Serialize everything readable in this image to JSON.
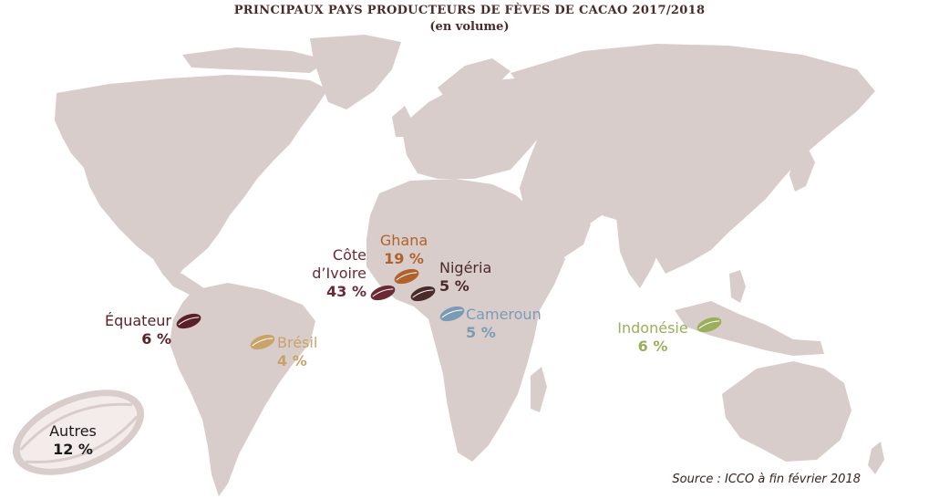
{
  "header": {
    "title": "PRINCIPAUX PAYS PRODUCTEURS DE FÈVES DE CACAO 2017/2018",
    "subtitle": "(en volume)"
  },
  "colors": {
    "land": "#d9cdcb",
    "cote_divoire": "#6b2a33",
    "ghana": "#b0622a",
    "nigeria": "#4a2a2a",
    "cameroun": "#7b9bb5",
    "equateur": "#5a1f28",
    "bresil": "#c9a36a",
    "indonesie": "#9aaf5a",
    "autres_pod": "#f3ecea"
  },
  "producers": [
    {
      "id": "cote-divoire",
      "name": "Côte d’Ivoire",
      "share": "43 %"
    },
    {
      "id": "ghana",
      "name": "Ghana",
      "share": "19 %"
    },
    {
      "id": "nigeria",
      "name": "Nigéria",
      "share": "5 %"
    },
    {
      "id": "cameroun",
      "name": "Cameroun",
      "share": "5 %"
    },
    {
      "id": "equateur",
      "name": "Équateur",
      "share": "6 %"
    },
    {
      "id": "bresil",
      "name": "Brésil",
      "share": "4 %"
    },
    {
      "id": "indonesie",
      "name": "Indonésie",
      "share": "6 %"
    },
    {
      "id": "autres",
      "name": "Autres",
      "share": "12 %"
    }
  ],
  "footer": {
    "source": "Source : ICCO à fin février 2018"
  }
}
